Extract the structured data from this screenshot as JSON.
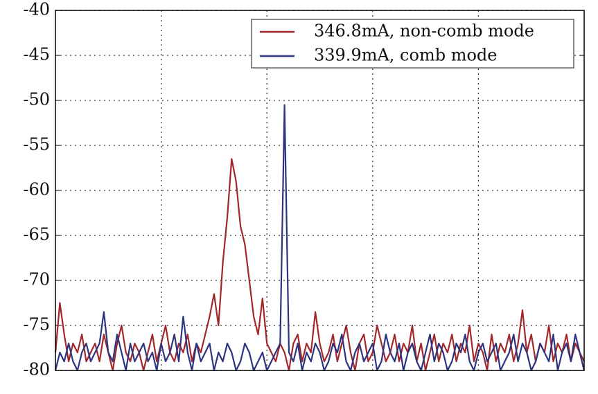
{
  "chart_data": {
    "type": "line",
    "ylim": [
      -80,
      -40
    ],
    "yticks": [
      -40,
      -45,
      -50,
      -55,
      -60,
      -65,
      -70,
      -75,
      -80
    ],
    "grid": true,
    "legend": "upper right",
    "series": [
      {
        "name": "346.8mA, non-comb mode",
        "color": "#a3262a",
        "values": [
          -78,
          -72.5,
          -76,
          -79,
          -77,
          -78,
          -76,
          -79,
          -78,
          -77,
          -79,
          -76,
          -78,
          -80,
          -77,
          -75,
          -78,
          -79,
          -77,
          -78,
          -80,
          -78,
          -76,
          -79,
          -77,
          -75,
          -78,
          -79,
          -77,
          -78,
          -76,
          -79,
          -77,
          -78,
          -76,
          -74,
          -71.5,
          -75,
          -68,
          -63,
          -56.5,
          -59,
          -64,
          -66,
          -70,
          -74,
          -76,
          -72,
          -77,
          -78,
          -79,
          -77,
          -78,
          -80,
          -77,
          -76,
          -79,
          -77,
          -78,
          -73.5,
          -77,
          -79,
          -78,
          -76,
          -79,
          -77,
          -75,
          -78,
          -80,
          -77,
          -76,
          -79,
          -78,
          -75,
          -77,
          -79,
          -78,
          -76,
          -79,
          -77,
          -78,
          -75,
          -79,
          -77,
          -80,
          -78,
          -76,
          -79,
          -77,
          -78,
          -76,
          -79,
          -77,
          -78,
          -75,
          -79,
          -77,
          -78,
          -80,
          -76,
          -79,
          -77,
          -78,
          -76,
          -79,
          -77,
          -73.3,
          -78,
          -76,
          -79,
          -77,
          -78,
          -75,
          -79,
          -77,
          -78,
          -76,
          -79,
          -77,
          -78,
          -79
        ]
      },
      {
        "name": "339.9mA, comb mode",
        "color": "#2c3482",
        "values": [
          -80,
          -78,
          -79,
          -77,
          -79,
          -80,
          -78,
          -77,
          -79,
          -78,
          -77,
          -73.5,
          -78,
          -79,
          -76,
          -78,
          -80,
          -77,
          -79,
          -78,
          -77,
          -79,
          -78,
          -80,
          -77,
          -79,
          -78,
          -76,
          -79,
          -74,
          -78,
          -80,
          -77,
          -79,
          -78,
          -77,
          -80,
          -78,
          -79,
          -77,
          -78,
          -80,
          -79,
          -77,
          -78,
          -80,
          -79,
          -78,
          -80,
          -79,
          -78,
          -77,
          -50.5,
          -78,
          -79,
          -77,
          -80,
          -78,
          -79,
          -77,
          -78,
          -80,
          -79,
          -77,
          -78,
          -76,
          -79,
          -80,
          -78,
          -77,
          -79,
          -78,
          -77,
          -80,
          -79,
          -76,
          -78,
          -79,
          -77,
          -80,
          -78,
          -77,
          -79,
          -80,
          -78,
          -76,
          -79,
          -77,
          -78,
          -80,
          -79,
          -77,
          -78,
          -76,
          -79,
          -80,
          -78,
          -77,
          -79,
          -78,
          -77,
          -80,
          -79,
          -78,
          -76,
          -79,
          -77,
          -78,
          -80,
          -79,
          -77,
          -78,
          -79,
          -76,
          -80,
          -78,
          -77,
          -79,
          -76,
          -78,
          -80
        ]
      }
    ]
  }
}
